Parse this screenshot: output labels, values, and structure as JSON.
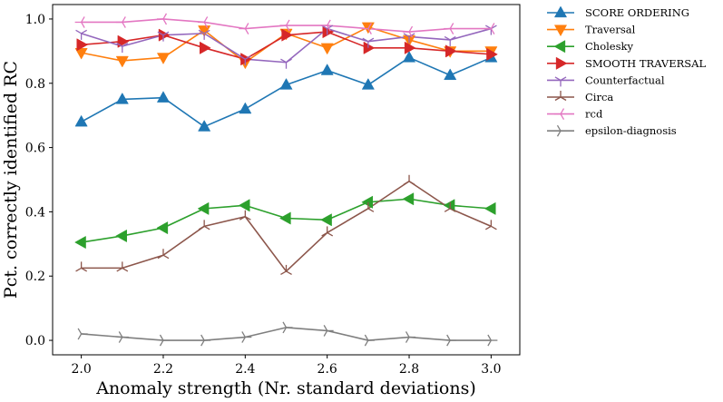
{
  "chart_data": {
    "type": "line",
    "xlabel": "Anomaly strength (Nr. standard deviations)",
    "ylabel": "Pct. correctly identified RC",
    "xlim": [
      1.93,
      3.07
    ],
    "ylim": [
      -0.045,
      1.045
    ],
    "xticks": [
      2.0,
      2.2,
      2.4,
      2.6,
      2.8,
      3.0
    ],
    "xtick_labels": [
      "2.0",
      "2.2",
      "2.4",
      "2.6",
      "2.8",
      "3.0"
    ],
    "yticks": [
      0.0,
      0.2,
      0.4,
      0.6,
      0.8,
      1.0
    ],
    "ytick_labels": [
      "0.0",
      "0.2",
      "0.4",
      "0.6",
      "0.8",
      "1.0"
    ],
    "grid": false,
    "legend_position": "outside-right",
    "x": [
      2.0,
      2.1,
      2.2,
      2.3,
      2.4,
      2.5,
      2.6,
      2.7,
      2.8,
      2.9,
      3.0
    ],
    "series": [
      {
        "name": "SCORE ORDERING",
        "color": "#1f77b4",
        "marker": "triangle-up",
        "values": [
          0.68,
          0.75,
          0.755,
          0.665,
          0.72,
          0.795,
          0.84,
          0.795,
          0.88,
          0.825,
          0.88
        ]
      },
      {
        "name": "Traversal",
        "color": "#ff7f0e",
        "marker": "triangle-down",
        "values": [
          0.895,
          0.87,
          0.88,
          0.965,
          0.865,
          0.955,
          0.91,
          0.975,
          0.935,
          0.9,
          0.9
        ]
      },
      {
        "name": "Cholesky",
        "color": "#2ca02c",
        "marker": "triangle-left",
        "values": [
          0.305,
          0.325,
          0.35,
          0.41,
          0.42,
          0.38,
          0.375,
          0.43,
          0.44,
          0.42,
          0.41
        ]
      },
      {
        "name": "SMOOTH TRAVERSAL",
        "color": "#d62728",
        "marker": "triangle-right",
        "values": [
          0.92,
          0.93,
          0.95,
          0.91,
          0.875,
          0.95,
          0.96,
          0.91,
          0.91,
          0.9,
          0.89
        ]
      },
      {
        "name": "Counterfactual",
        "color": "#9467bd",
        "marker": "tri-down",
        "values": [
          0.955,
          0.915,
          0.95,
          0.955,
          0.875,
          0.865,
          0.97,
          0.93,
          0.945,
          0.935,
          0.97
        ]
      },
      {
        "name": "Circa",
        "color": "#8c564b",
        "marker": "tri-up",
        "values": [
          0.225,
          0.225,
          0.265,
          0.355,
          0.385,
          0.215,
          0.335,
          0.41,
          0.495,
          0.41,
          0.355
        ]
      },
      {
        "name": "rcd",
        "color": "#e377c2",
        "marker": "tri-left",
        "values": [
          0.99,
          0.99,
          1.0,
          0.99,
          0.97,
          0.98,
          0.98,
          0.97,
          0.96,
          0.97,
          0.97
        ]
      },
      {
        "name": "epsilon-diagnosis",
        "color": "#7f7f7f",
        "marker": "tri-right",
        "values": [
          0.02,
          0.01,
          0.0,
          0.0,
          0.01,
          0.04,
          0.03,
          0.0,
          0.01,
          0.0,
          0.0
        ]
      }
    ]
  }
}
